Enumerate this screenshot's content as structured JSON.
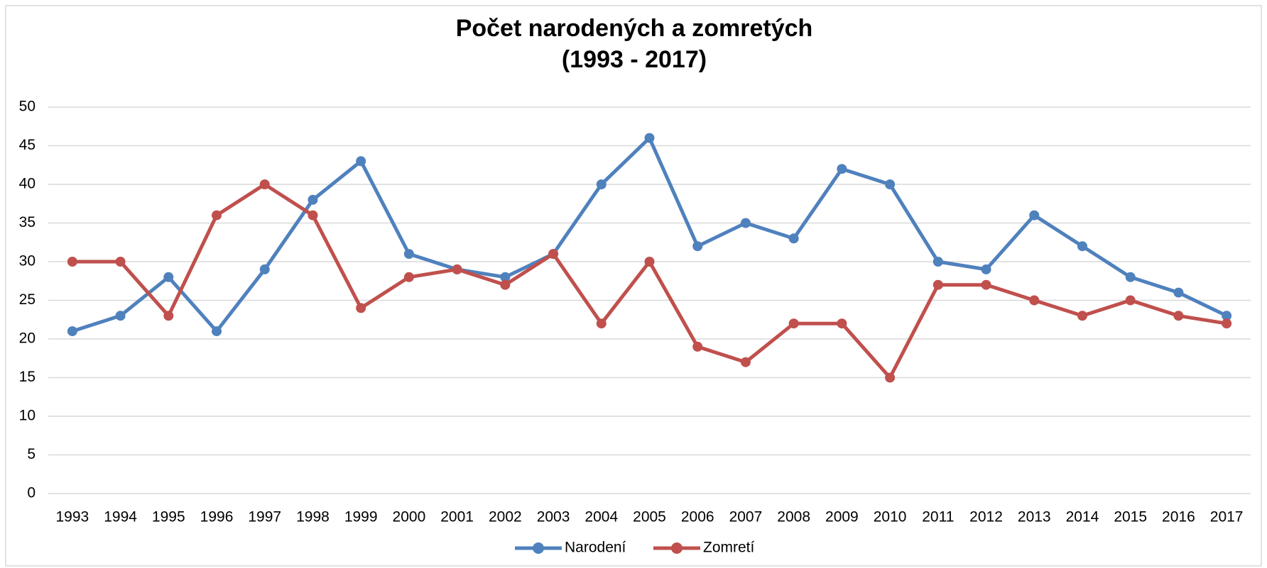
{
  "chart_data": {
    "type": "line",
    "title": [
      "Počet narodených a zomretých",
      "(1993 - 2017)"
    ],
    "categories": [
      "1993",
      "1994",
      "1995",
      "1996",
      "1997",
      "1998",
      "1999",
      "2000",
      "2001",
      "2002",
      "2003",
      "2004",
      "2005",
      "2006",
      "2007",
      "2008",
      "2009",
      "2010",
      "2011",
      "2012",
      "2013",
      "2014",
      "2015",
      "2016",
      "2017"
    ],
    "series": [
      {
        "name": "Narodení",
        "color": "#4f81bd",
        "values": [
          21,
          23,
          28,
          21,
          29,
          38,
          43,
          31,
          29,
          28,
          31,
          40,
          46,
          32,
          35,
          33,
          42,
          40,
          30,
          29,
          36,
          32,
          28,
          26,
          23
        ]
      },
      {
        "name": "Zomretí",
        "color": "#c0504d",
        "values": [
          30,
          30,
          23,
          36,
          40,
          36,
          24,
          28,
          29,
          27,
          31,
          22,
          30,
          19,
          17,
          22,
          22,
          15,
          27,
          27,
          25,
          23,
          25,
          23,
          22
        ]
      }
    ],
    "ylim": [
      0,
      50
    ],
    "yticks": [
      0,
      5,
      10,
      15,
      20,
      25,
      30,
      35,
      40,
      45,
      50
    ],
    "grid": true,
    "legend": "bottom"
  }
}
